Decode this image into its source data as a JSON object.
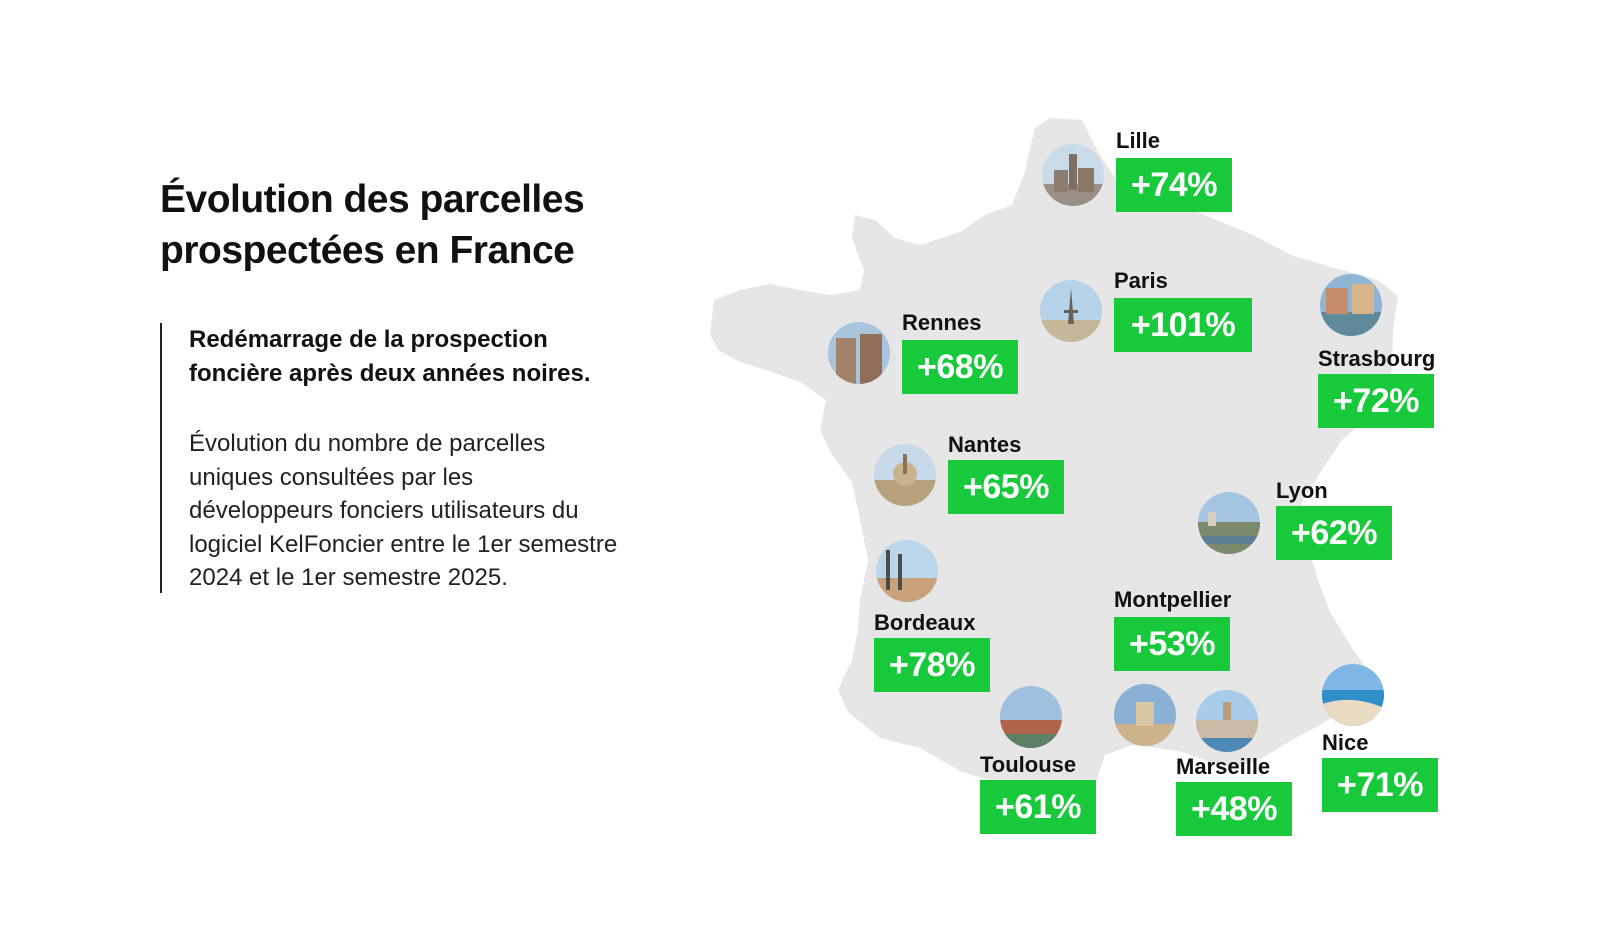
{
  "title_lines": [
    "Évolution des parcelles",
    "prospectées en France"
  ],
  "lead_lines": [
    "Redémarrage de la prospection",
    "foncière après deux années noires."
  ],
  "description_lines": [
    "Évolution du nombre de parcelles",
    "uniques consultées par les",
    "développeurs fonciers utilisateurs du",
    "logiciel KelFoncier entre le 1er semestre",
    "2024 et le 1er semestre 2025."
  ],
  "colors": {
    "badge": "#17c93b",
    "map_fill": "#e6e6e6",
    "text": "#111111"
  },
  "cities": [
    {
      "key": "lille",
      "name": "Lille",
      "value": "+74%"
    },
    {
      "key": "paris",
      "name": "Paris",
      "value": "+101%"
    },
    {
      "key": "strasbourg",
      "name": "Strasbourg",
      "value": "+72%"
    },
    {
      "key": "rennes",
      "name": "Rennes",
      "value": "+68%"
    },
    {
      "key": "nantes",
      "name": "Nantes",
      "value": "+65%"
    },
    {
      "key": "lyon",
      "name": "Lyon",
      "value": "+62%"
    },
    {
      "key": "bordeaux",
      "name": "Bordeaux",
      "value": "+78%"
    },
    {
      "key": "montpellier",
      "name": "Montpellier",
      "value": "+53%"
    },
    {
      "key": "toulouse",
      "name": "Toulouse",
      "value": "+61%"
    },
    {
      "key": "marseille",
      "name": "Marseille",
      "value": "+48%"
    },
    {
      "key": "nice",
      "name": "Nice",
      "value": "+71%"
    }
  ]
}
